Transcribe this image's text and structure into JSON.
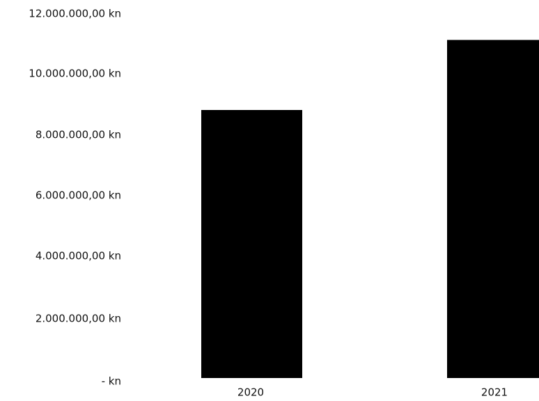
{
  "chart_data": {
    "type": "bar",
    "categories": [
      "2020",
      "2021"
    ],
    "values": [
      8800000,
      11100000
    ],
    "ylim": [
      0,
      12000000
    ],
    "yticks": [
      0,
      2000000,
      4000000,
      6000000,
      8000000,
      10000000,
      12000000
    ],
    "ytick_labels": [
      "-  kn",
      "2.000.000,00 kn",
      "4.000.000,00 kn",
      "6.000.000,00 kn",
      "8.000.000,00 kn",
      "10.000.000,00 kn",
      "12.000.000,00 kn"
    ],
    "title": "",
    "xlabel": "",
    "ylabel": "",
    "grid": false,
    "legend": "none",
    "bar_color": "#000000"
  }
}
